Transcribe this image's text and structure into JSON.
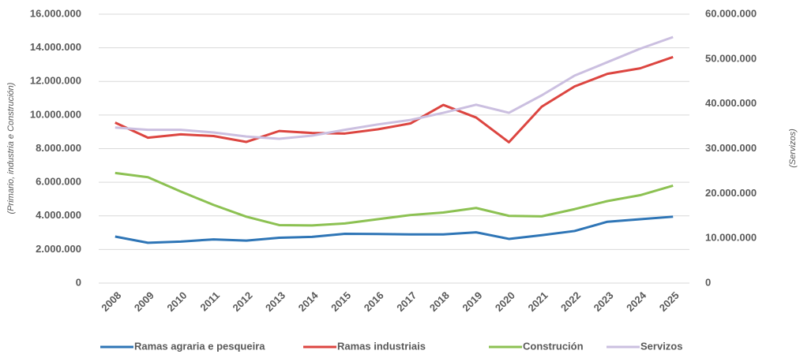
{
  "chart_data": {
    "type": "line",
    "categories": [
      "2008",
      "2009",
      "2010",
      "2011",
      "2012",
      "2013",
      "2014",
      "2015",
      "2016",
      "2017",
      "2018",
      "2019",
      "2020",
      "2021",
      "2022",
      "2023",
      "2024",
      "2025"
    ],
    "series": [
      {
        "name": "Ramas agraria e pesqueira",
        "color": "#2e75b6",
        "values": [
          2770000,
          2400000,
          2470000,
          2600000,
          2530000,
          2700000,
          2750000,
          2930000,
          2920000,
          2900000,
          2900000,
          3020000,
          2630000,
          2850000,
          3100000,
          3650000,
          3800000,
          3950000
        ]
      },
      {
        "name": "Ramas industriais",
        "color": "#dc4540",
        "values": [
          9550000,
          8650000,
          8850000,
          8750000,
          8400000,
          9050000,
          8930000,
          8900000,
          9150000,
          9500000,
          10600000,
          9850000,
          8380000,
          10500000,
          11700000,
          12450000,
          12780000,
          13450000
        ]
      },
      {
        "name": "Construción",
        "color": "#8cc152",
        "values": [
          6550000,
          6300000,
          5450000,
          4650000,
          3950000,
          3450000,
          3430000,
          3550000,
          3800000,
          4050000,
          4200000,
          4470000,
          4000000,
          3970000,
          4400000,
          4880000,
          5230000,
          5800000
        ]
      },
      {
        "name": "Servizos",
        "color": "#cbbfe0",
        "axis": "y2",
        "values": [
          34700000,
          34200000,
          34200000,
          33600000,
          32700000,
          32200000,
          32900000,
          34200000,
          35400000,
          36400000,
          38000000,
          39800000,
          38000000,
          41900000,
          46300000,
          49300000,
          52300000,
          54900000
        ]
      }
    ],
    "ylabel": "(Primario, industria e Construción)",
    "y2label": "(Servizos)",
    "ylim": [
      0,
      16000000
    ],
    "yticks": [
      0,
      {
        "value": 2000000,
        "label": "2.000.000"
      },
      {
        "value": 4000000,
        "label": "4.000.000"
      },
      {
        "value": 6000000,
        "label": "6.000.000"
      },
      {
        "value": 8000000,
        "label": "8.000.000"
      },
      {
        "value": 10000000,
        "label": "10.000.000"
      },
      {
        "value": 12000000,
        "label": "12.000.000"
      },
      {
        "value": 14000000,
        "label": "14.000.000"
      },
      {
        "value": 16000000,
        "label": "16.000.000"
      }
    ],
    "y2lim": [
      0,
      60000000
    ],
    "y2ticks": [
      0,
      {
        "value": 10000000,
        "label": "10.000.000"
      },
      {
        "value": 20000000,
        "label": "20.000.000"
      },
      {
        "value": 30000000,
        "label": "30.000.000"
      },
      {
        "value": 40000000,
        "label": "40.000.000"
      },
      {
        "value": 50000000,
        "label": "50.000.000"
      },
      {
        "value": 60000000,
        "label": "60.000.000"
      }
    ],
    "grid": true,
    "legend": "bottom"
  }
}
